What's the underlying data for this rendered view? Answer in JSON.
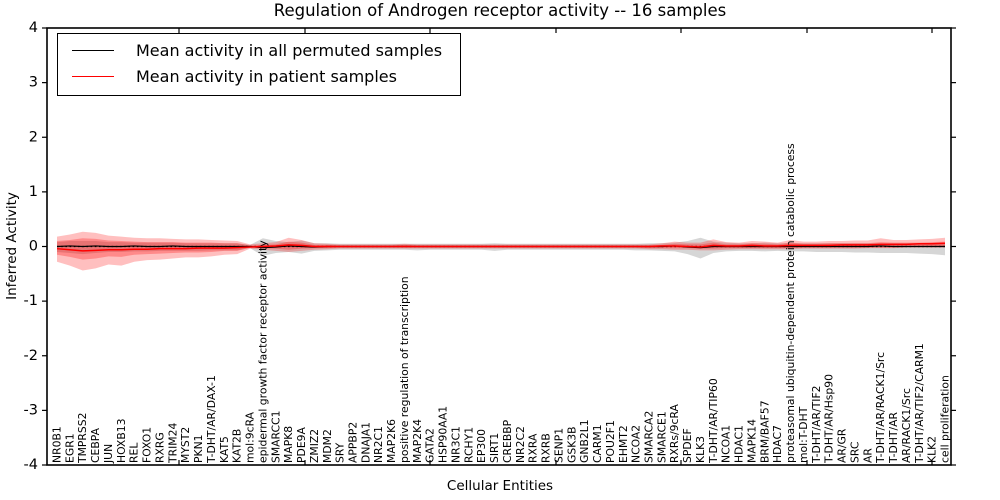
{
  "figure": {
    "title": "Regulation of Androgen receptor activity -- 16 samples",
    "xlabel": "Cellular Entities",
    "ylabel": "Inferred Activity"
  },
  "legend": {
    "position": "upper left",
    "items": [
      {
        "label": "Mean activity in all permuted samples",
        "color": "#000000"
      },
      {
        "label": "Mean activity in patient samples",
        "color": "#ff0000"
      }
    ]
  },
  "chart_data": {
    "type": "line",
    "title": "Regulation of Androgen receptor activity -- 16 samples",
    "xlabel": "Cellular Entities",
    "ylabel": "Inferred Activity",
    "ylim": [
      -4,
      4
    ],
    "yticks": [
      -4,
      -3,
      -2,
      -1,
      0,
      1,
      2,
      3,
      4
    ],
    "grid": false,
    "legend_position": "upper left",
    "reference_line": {
      "y": 0,
      "style": "dotted",
      "color": "#000000"
    },
    "categories": [
      "NR0B1",
      "EGR1",
      "TMPRSS2",
      "CEBPA",
      "JUN",
      "HOXB13",
      "REL",
      "FOXO1",
      "RXRG",
      "TRIM24",
      "MYST2",
      "PKN1",
      "T-DHT/AR/DAX-1",
      "KAT5",
      "KAT2B",
      "mol:9cRA",
      "epidermal growth factor receptor activity",
      "SMARCC1",
      "MAPK8",
      "PDE9A",
      "ZMIZ2",
      "MDM2",
      "SRY",
      "APPBP2",
      "DNAJA1",
      "NR2C1",
      "MAP2K6",
      "positive regulation of transcription",
      "MAP2K4",
      "GATA2",
      "HSP90AA1",
      "NR3C1",
      "RCHY1",
      "EP300",
      "SIRT1",
      "CREBBP",
      "NR2C2",
      "RXRA",
      "RXRB",
      "SENP1",
      "GSK3B",
      "GNB2L1",
      "CARM1",
      "POU2F1",
      "EHMT2",
      "NCOA2",
      "SMARCA2",
      "SMARCE1",
      "RXRs/9cRA",
      "SPDEF",
      "KLK3",
      "T-DHT/AR/TIP60",
      "NCOA1",
      "HDAC1",
      "MAPK14",
      "BRM/BAF57",
      "HDAC7",
      "proteasomal ubiquitin-dependent protein catabolic process",
      "mol:T-DHT",
      "T-DHT/AR/TIF2",
      "T-DHT/AR/Hsp90",
      "AR/GR",
      "SRC",
      "AR",
      "T-DHT/AR/RACK1/Src",
      "T-DHT/AR",
      "AR/RACK1/Src",
      "T-DHT/AR/TIF2/CARM1",
      "KLK2",
      "cell proliferation"
    ],
    "series": [
      {
        "name": "Mean activity in all permuted samples",
        "color": "#000000",
        "values": [
          0,
          0.01,
          0,
          0.01,
          0,
          0,
          0.01,
          0,
          0,
          0.01,
          0,
          0,
          0,
          0,
          0,
          0,
          -0.02,
          -0.01,
          0.01,
          0,
          -0.01,
          0,
          0,
          0,
          0,
          0,
          0,
          0,
          0,
          0,
          0,
          0,
          0,
          0,
          0,
          0,
          0,
          0,
          0,
          0,
          0,
          0,
          0,
          0,
          0,
          0,
          0,
          0,
          0.01,
          -0.01,
          -0.02,
          0,
          0,
          0,
          0,
          0,
          0,
          0,
          0,
          0,
          0,
          0,
          0,
          0,
          0.01,
          0,
          0,
          0,
          0,
          0
        ]
      },
      {
        "name": "Mean activity in patient samples",
        "color": "#ff0000",
        "values": [
          -0.04,
          -0.06,
          -0.08,
          -0.07,
          -0.06,
          -0.06,
          -0.05,
          -0.05,
          -0.04,
          -0.04,
          -0.04,
          -0.03,
          -0.03,
          -0.03,
          -0.02,
          -0.01,
          0,
          0.01,
          0.03,
          0.02,
          0,
          0,
          0,
          0,
          0,
          0,
          0,
          0,
          0,
          0,
          0,
          0,
          0,
          0,
          0,
          0,
          0,
          0,
          0,
          0,
          0,
          0,
          0,
          0,
          0,
          0,
          0,
          0.01,
          0.01,
          0,
          -0.01,
          0.02,
          0.01,
          0.01,
          0.02,
          0.01,
          0.01,
          0.02,
          0.02,
          0.02,
          0.02,
          0.03,
          0.03,
          0.03,
          0.04,
          0.04,
          0.04,
          0.05,
          0.05,
          0.06
        ]
      }
    ],
    "bands": [
      {
        "name": "permuted-samples-range",
        "color": "#808080",
        "opacity": 0.32,
        "lower": [
          -0.1,
          -0.12,
          -0.14,
          -0.12,
          -0.1,
          -0.1,
          -0.09,
          -0.09,
          -0.08,
          -0.08,
          -0.08,
          -0.08,
          -0.07,
          -0.07,
          -0.07,
          -0.03,
          -0.17,
          -0.12,
          -0.1,
          -0.13,
          -0.08,
          -0.07,
          -0.06,
          -0.06,
          -0.06,
          -0.06,
          -0.06,
          -0.06,
          -0.07,
          -0.06,
          -0.06,
          -0.06,
          -0.06,
          -0.06,
          -0.08,
          -0.06,
          -0.06,
          -0.06,
          -0.06,
          -0.06,
          -0.06,
          -0.06,
          -0.06,
          -0.06,
          -0.06,
          -0.07,
          -0.07,
          -0.08,
          -0.09,
          -0.14,
          -0.22,
          -0.12,
          -0.09,
          -0.08,
          -0.08,
          -0.09,
          -0.08,
          -0.09,
          -0.09,
          -0.1,
          -0.1,
          -0.1,
          -0.11,
          -0.11,
          -0.12,
          -0.12,
          -0.12,
          -0.13,
          -0.14,
          -0.16
        ],
        "upper": [
          0.08,
          0.1,
          0.1,
          0.1,
          0.08,
          0.08,
          0.07,
          0.07,
          0.07,
          0.07,
          0.06,
          0.06,
          0.06,
          0.06,
          0.06,
          0.03,
          0.15,
          0.1,
          0.08,
          0.11,
          0.06,
          0.06,
          0.05,
          0.05,
          0.05,
          0.05,
          0.05,
          0.05,
          0.05,
          0.05,
          0.05,
          0.05,
          0.05,
          0.05,
          0.06,
          0.05,
          0.05,
          0.05,
          0.05,
          0.05,
          0.05,
          0.05,
          0.05,
          0.05,
          0.05,
          0.05,
          0.06,
          0.06,
          0.07,
          0.1,
          0.16,
          0.09,
          0.07,
          0.06,
          0.06,
          0.07,
          0.06,
          0.06,
          0.06,
          0.06,
          0.06,
          0.06,
          0.06,
          0.06,
          0.06,
          0.06,
          0.06,
          0.06,
          0.06,
          0.05
        ]
      },
      {
        "name": "patient-samples-range-outer",
        "color": "#ff0000",
        "opacity": 0.25,
        "lower": [
          -0.28,
          -0.35,
          -0.44,
          -0.4,
          -0.33,
          -0.35,
          -0.28,
          -0.25,
          -0.24,
          -0.22,
          -0.2,
          -0.2,
          -0.18,
          -0.15,
          -0.14,
          -0.04,
          -0.06,
          -0.08,
          -0.1,
          -0.08,
          -0.06,
          -0.05,
          -0.04,
          -0.04,
          -0.04,
          -0.04,
          -0.04,
          -0.04,
          -0.04,
          -0.04,
          -0.04,
          -0.04,
          -0.04,
          -0.04,
          -0.04,
          -0.04,
          -0.04,
          -0.04,
          -0.04,
          -0.04,
          -0.04,
          -0.04,
          -0.04,
          -0.04,
          -0.04,
          -0.04,
          -0.05,
          -0.05,
          -0.06,
          -0.06,
          -0.07,
          -0.07,
          -0.06,
          -0.05,
          -0.05,
          -0.05,
          -0.05,
          -0.05,
          -0.04,
          -0.04,
          -0.04,
          -0.04,
          -0.04,
          -0.03,
          -0.03,
          -0.03,
          -0.02,
          -0.02,
          -0.02,
          -0.02
        ],
        "upper": [
          0.18,
          0.22,
          0.27,
          0.25,
          0.2,
          0.18,
          0.16,
          0.15,
          0.15,
          0.14,
          0.13,
          0.13,
          0.12,
          0.11,
          0.1,
          0.04,
          0.06,
          0.08,
          0.16,
          0.12,
          0.06,
          0.05,
          0.04,
          0.04,
          0.04,
          0.04,
          0.04,
          0.05,
          0.04,
          0.04,
          0.04,
          0.04,
          0.04,
          0.04,
          0.04,
          0.04,
          0.04,
          0.04,
          0.04,
          0.04,
          0.04,
          0.04,
          0.04,
          0.04,
          0.04,
          0.04,
          0.04,
          0.06,
          0.09,
          0.07,
          0.07,
          0.13,
          0.08,
          0.07,
          0.1,
          0.09,
          0.07,
          0.12,
          0.09,
          0.09,
          0.1,
          0.1,
          0.11,
          0.11,
          0.15,
          0.12,
          0.12,
          0.13,
          0.14,
          0.16
        ]
      },
      {
        "name": "patient-samples-range-inner",
        "color": "#ff0000",
        "opacity": 0.28,
        "lower": [
          -0.15,
          -0.19,
          -0.24,
          -0.22,
          -0.18,
          -0.19,
          -0.15,
          -0.14,
          -0.13,
          -0.12,
          -0.11,
          -0.11,
          -0.1,
          -0.08,
          -0.08,
          -0.02,
          -0.03,
          -0.04,
          -0.06,
          -0.04,
          -0.03,
          -0.03,
          -0.02,
          -0.02,
          -0.02,
          -0.02,
          -0.02,
          -0.02,
          -0.02,
          -0.02,
          -0.02,
          -0.02,
          -0.02,
          -0.02,
          -0.02,
          -0.02,
          -0.02,
          -0.02,
          -0.02,
          -0.02,
          -0.02,
          -0.02,
          -0.02,
          -0.02,
          -0.02,
          -0.02,
          -0.03,
          -0.03,
          -0.03,
          -0.03,
          -0.04,
          -0.04,
          -0.03,
          -0.03,
          -0.03,
          -0.03,
          -0.03,
          -0.03,
          -0.02,
          -0.02,
          -0.02,
          -0.02,
          -0.02,
          -0.02,
          -0.02,
          -0.02,
          -0.01,
          -0.01,
          -0.01,
          -0.01
        ],
        "upper": [
          0.1,
          0.12,
          0.15,
          0.14,
          0.11,
          0.1,
          0.09,
          0.08,
          0.08,
          0.08,
          0.07,
          0.07,
          0.07,
          0.06,
          0.06,
          0.02,
          0.03,
          0.04,
          0.09,
          0.07,
          0.03,
          0.03,
          0.02,
          0.02,
          0.02,
          0.02,
          0.02,
          0.03,
          0.02,
          0.02,
          0.02,
          0.02,
          0.02,
          0.02,
          0.02,
          0.02,
          0.02,
          0.02,
          0.02,
          0.02,
          0.02,
          0.02,
          0.02,
          0.02,
          0.02,
          0.02,
          0.02,
          0.03,
          0.05,
          0.04,
          0.04,
          0.07,
          0.04,
          0.04,
          0.06,
          0.05,
          0.04,
          0.07,
          0.05,
          0.05,
          0.06,
          0.06,
          0.06,
          0.06,
          0.08,
          0.07,
          0.07,
          0.07,
          0.08,
          0.09
        ]
      }
    ]
  }
}
